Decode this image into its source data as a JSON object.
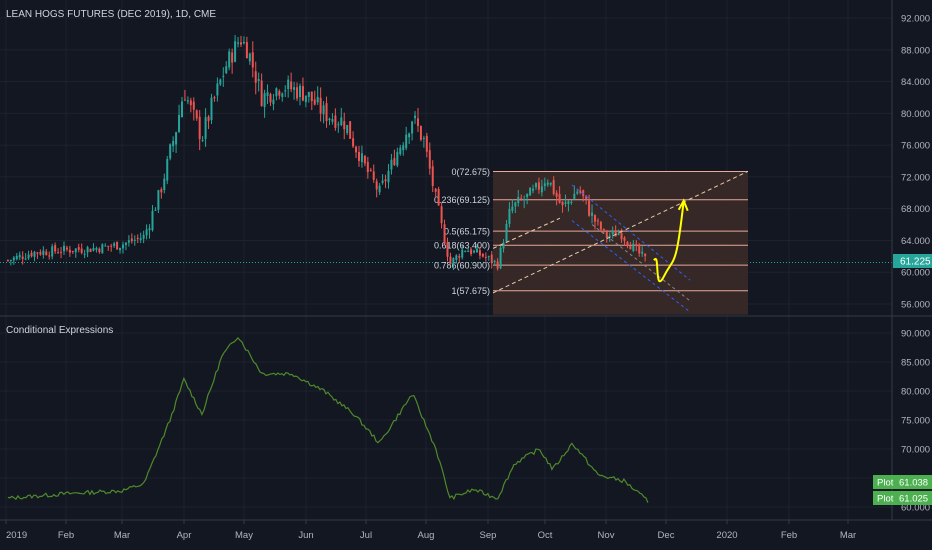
{
  "main_pane": {
    "title": "LEAN HOGS FUTURES (DEC 2019), 1D, CME",
    "price_axis_ticks": [
      "92.000",
      "88.000",
      "84.000",
      "80.000",
      "76.000",
      "72.000",
      "68.000",
      "64.000",
      "60.000",
      "56.000"
    ],
    "last_price_label": "61.225",
    "fib_levels": [
      {
        "label": "0(72.675)",
        "value": 72.675
      },
      {
        "label": "0.236(69.125)",
        "value": 69.125
      },
      {
        "label": "0.5(65.175)",
        "value": 65.175
      },
      {
        "label": "0.618(63.400)",
        "value": 63.4
      },
      {
        "label": "0.786(60.900)",
        "value": 60.9
      },
      {
        "label": "1(57.675)",
        "value": 57.675
      }
    ]
  },
  "indicator_pane": {
    "title": "Conditional Expressions",
    "axis_ticks": [
      "90.000",
      "85.000",
      "80.000",
      "75.000",
      "70.000",
      "65.000",
      "60.000"
    ],
    "plot_labels": [
      {
        "name": "Plot",
        "value": "61.038"
      },
      {
        "name": "Plot",
        "value": "61.025"
      }
    ]
  },
  "time_axis": [
    "2019",
    "Feb",
    "Mar",
    "Apr",
    "May",
    "Jun",
    "Jul",
    "Aug",
    "Sep",
    "Oct",
    "Nov",
    "Dec",
    "2020",
    "Feb",
    "Mar"
  ],
  "colors": {
    "background": "#131722",
    "up_candle": "#26a69a",
    "down_candle": "#ef5350",
    "indicator_line": "#4f8a2a",
    "last_price_line": "#26a69a",
    "fib_line": "#e8a89a",
    "fib_fill": "#3b2a27",
    "arrow": "#ffff00",
    "channel": "#2962ff",
    "plot_badge": "#4caf50"
  },
  "chart_data": {
    "type": "candlestick",
    "x_range": [
      "2019-01-01",
      "2020-03-31"
    ],
    "ylim": [
      54,
      93
    ],
    "close_series": [
      {
        "date": "2019-01-02",
        "value": 61.5
      },
      {
        "date": "2019-01-15",
        "value": 62.5
      },
      {
        "date": "2019-02-01",
        "value": 62.8
      },
      {
        "date": "2019-02-15",
        "value": 63.0
      },
      {
        "date": "2019-03-01",
        "value": 63.5
      },
      {
        "date": "2019-03-12",
        "value": 64.5
      },
      {
        "date": "2019-03-20",
        "value": 70.0
      },
      {
        "date": "2019-03-28",
        "value": 78.0
      },
      {
        "date": "2019-04-01",
        "value": 83.0
      },
      {
        "date": "2019-04-05",
        "value": 80.0
      },
      {
        "date": "2019-04-10",
        "value": 77.0
      },
      {
        "date": "2019-04-15",
        "value": 81.0
      },
      {
        "date": "2019-04-22",
        "value": 86.0
      },
      {
        "date": "2019-04-29",
        "value": 89.5
      },
      {
        "date": "2019-05-03",
        "value": 88.0
      },
      {
        "date": "2019-05-10",
        "value": 82.0
      },
      {
        "date": "2019-05-20",
        "value": 83.5
      },
      {
        "date": "2019-06-01",
        "value": 82.5
      },
      {
        "date": "2019-06-10",
        "value": 80.0
      },
      {
        "date": "2019-06-20",
        "value": 79.0
      },
      {
        "date": "2019-07-01",
        "value": 73.0
      },
      {
        "date": "2019-07-08",
        "value": 70.0
      },
      {
        "date": "2019-07-15",
        "value": 74.0
      },
      {
        "date": "2019-07-25",
        "value": 79.5
      },
      {
        "date": "2019-07-31",
        "value": 76.5
      },
      {
        "date": "2019-08-06",
        "value": 69.0
      },
      {
        "date": "2019-08-13",
        "value": 61.0
      },
      {
        "date": "2019-08-20",
        "value": 63.0
      },
      {
        "date": "2019-08-30",
        "value": 62.0
      },
      {
        "date": "2019-09-06",
        "value": 61.0
      },
      {
        "date": "2019-09-13",
        "value": 68.0
      },
      {
        "date": "2019-09-25",
        "value": 70.0
      },
      {
        "date": "2019-10-02",
        "value": 72.0
      },
      {
        "date": "2019-10-10",
        "value": 68.0
      },
      {
        "date": "2019-10-18",
        "value": 70.5
      },
      {
        "date": "2019-10-25",
        "value": 67.0
      },
      {
        "date": "2019-11-01",
        "value": 64.5
      },
      {
        "date": "2019-11-08",
        "value": 65.0
      },
      {
        "date": "2019-11-15",
        "value": 63.0
      },
      {
        "date": "2019-11-22",
        "value": 61.2
      }
    ],
    "projection_path": [
      {
        "date": "2019-11-25",
        "value": 61.5
      },
      {
        "date": "2019-11-30",
        "value": 59.5
      },
      {
        "date": "2019-12-04",
        "value": 61.0
      },
      {
        "date": "2019-12-10",
        "value": 69.0
      }
    ],
    "indicator_series": [
      {
        "date": "2019-01-02",
        "value": 61.5
      },
      {
        "date": "2019-02-01",
        "value": 62.3
      },
      {
        "date": "2019-03-01",
        "value": 62.8
      },
      {
        "date": "2019-03-12",
        "value": 64.0
      },
      {
        "date": "2019-03-25",
        "value": 75.0
      },
      {
        "date": "2019-04-01",
        "value": 82.0
      },
      {
        "date": "2019-04-10",
        "value": 76.0
      },
      {
        "date": "2019-04-20",
        "value": 86.0
      },
      {
        "date": "2019-04-28",
        "value": 89.5
      },
      {
        "date": "2019-05-10",
        "value": 83.0
      },
      {
        "date": "2019-05-25",
        "value": 83.0
      },
      {
        "date": "2019-06-10",
        "value": 80.0
      },
      {
        "date": "2019-06-25",
        "value": 76.0
      },
      {
        "date": "2019-07-08",
        "value": 71.0
      },
      {
        "date": "2019-07-25",
        "value": 79.5
      },
      {
        "date": "2019-08-06",
        "value": 70.0
      },
      {
        "date": "2019-08-13",
        "value": 61.5
      },
      {
        "date": "2019-08-25",
        "value": 63.0
      },
      {
        "date": "2019-09-06",
        "value": 61.5
      },
      {
        "date": "2019-09-15",
        "value": 67.5
      },
      {
        "date": "2019-09-28",
        "value": 70.0
      },
      {
        "date": "2019-10-05",
        "value": 66.5
      },
      {
        "date": "2019-10-15",
        "value": 71.0
      },
      {
        "date": "2019-10-28",
        "value": 65.5
      },
      {
        "date": "2019-11-10",
        "value": 64.5
      },
      {
        "date": "2019-11-22",
        "value": 61.0
      }
    ]
  }
}
